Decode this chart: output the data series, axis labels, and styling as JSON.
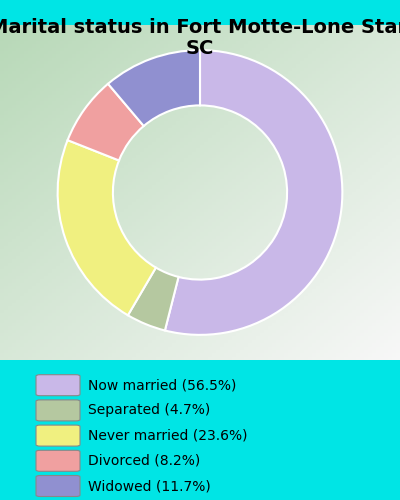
{
  "title": "Marital status in Fort Motte-Lone Star,\nSC",
  "title_fontsize": 14,
  "title_fontweight": "bold",
  "background_color": "#00e5e5",
  "slices": [
    56.5,
    4.7,
    23.6,
    8.2,
    11.7
  ],
  "labels": [
    "Now married (56.5%)",
    "Separated (4.7%)",
    "Never married (23.6%)",
    "Divorced (8.2%)",
    "Widowed (11.7%)"
  ],
  "colors": [
    "#c9b8e8",
    "#b5c8a0",
    "#f0f080",
    "#f0a0a0",
    "#9090d0"
  ],
  "start_angle": 90,
  "legend_fontsize": 10
}
